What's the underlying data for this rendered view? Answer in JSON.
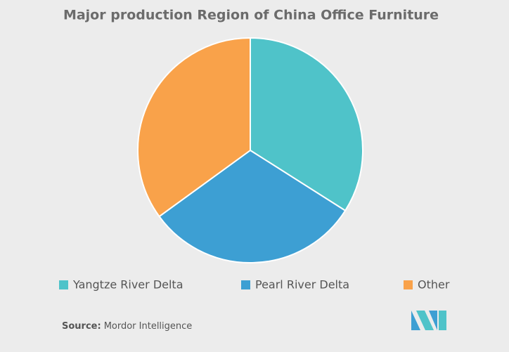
{
  "chart_data": {
    "type": "pie",
    "title": "Major production Region of China Office Furniture",
    "categories": [
      "Yangtze River Delta",
      "Pearl River Delta",
      "Other"
    ],
    "values": [
      34,
      31,
      35
    ],
    "colors": [
      "#4fc3c9",
      "#3d9fd3",
      "#f9a24a"
    ],
    "legend": "bottom",
    "source_label": "Source:",
    "source": "Mordor Intelligence"
  }
}
